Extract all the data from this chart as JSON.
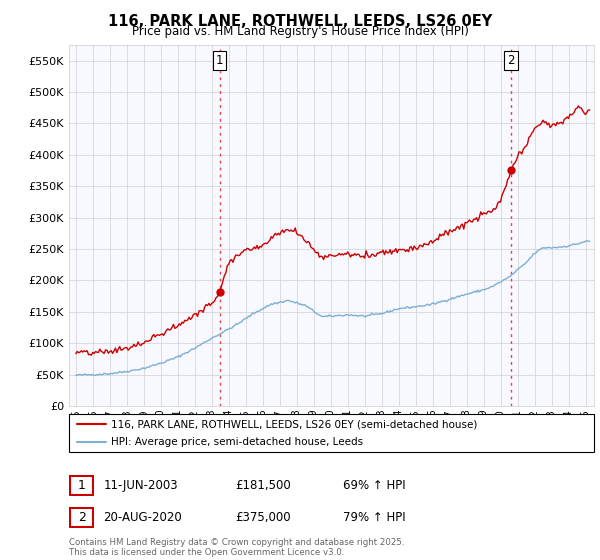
{
  "title": "116, PARK LANE, ROTHWELL, LEEDS, LS26 0EY",
  "subtitle": "Price paid vs. HM Land Registry's House Price Index (HPI)",
  "legend_line1": "116, PARK LANE, ROTHWELL, LEEDS, LS26 0EY (semi-detached house)",
  "legend_line2": "HPI: Average price, semi-detached house, Leeds",
  "sale1_date": "11-JUN-2003",
  "sale1_price": "£181,500",
  "sale1_hpi": "69% ↑ HPI",
  "sale2_date": "20-AUG-2020",
  "sale2_price": "£375,000",
  "sale2_hpi": "79% ↑ HPI",
  "footer": "Contains HM Land Registry data © Crown copyright and database right 2025.\nThis data is licensed under the Open Government Licence v3.0.",
  "red_color": "#cc0000",
  "blue_color": "#7bafd4",
  "sale1_year": 2003.458,
  "sale1_val": 181500,
  "sale2_year": 2020.625,
  "sale2_val": 375000,
  "ylim": [
    0,
    575000
  ],
  "yticks": [
    0,
    50000,
    100000,
    150000,
    200000,
    250000,
    300000,
    350000,
    400000,
    450000,
    500000,
    550000
  ],
  "blue_anchors_x": [
    1995.0,
    1996.0,
    1997.0,
    1998.0,
    1999.0,
    2000.0,
    2001.0,
    2002.0,
    2003.0,
    2003.5,
    2004.5,
    2005.5,
    2006.5,
    2007.5,
    2008.5,
    2009.5,
    2010.0,
    2011.0,
    2012.0,
    2013.0,
    2014.0,
    2015.0,
    2016.0,
    2017.0,
    2018.0,
    2019.0,
    2019.5,
    2020.5,
    2021.5,
    2022.0,
    2022.5,
    2023.0,
    2023.5,
    2024.0,
    2024.5,
    2025.0
  ],
  "blue_anchors_y": [
    49000,
    50000,
    51500,
    55000,
    60000,
    68000,
    78000,
    92000,
    108000,
    115000,
    130000,
    148000,
    162000,
    168000,
    160000,
    142000,
    143000,
    145000,
    143000,
    147000,
    155000,
    158000,
    162000,
    170000,
    178000,
    185000,
    190000,
    205000,
    228000,
    243000,
    252000,
    252000,
    253000,
    255000,
    258000,
    262000
  ],
  "red_anchors_x": [
    1995.0,
    1996.0,
    1997.0,
    1998.0,
    1999.0,
    2000.0,
    2001.0,
    2002.0,
    2003.0,
    2003.458,
    2004.0,
    2005.0,
    2006.0,
    2007.0,
    2007.8,
    2008.5,
    2009.0,
    2009.5,
    2010.0,
    2011.0,
    2012.0,
    2012.5,
    2013.0,
    2014.0,
    2015.0,
    2016.0,
    2017.0,
    2018.0,
    2019.0,
    2019.5,
    2020.0,
    2020.625,
    2021.0,
    2021.5,
    2022.0,
    2022.5,
    2023.0,
    2023.5,
    2024.0,
    2024.5,
    2025.0
  ],
  "red_anchors_y": [
    85000,
    84000,
    87000,
    92000,
    100000,
    115000,
    128000,
    145000,
    163000,
    181500,
    230000,
    248000,
    256000,
    278000,
    280000,
    265000,
    250000,
    235000,
    240000,
    242000,
    238000,
    242000,
    245000,
    248000,
    252000,
    262000,
    278000,
    290000,
    305000,
    310000,
    325000,
    375000,
    395000,
    415000,
    440000,
    455000,
    445000,
    450000,
    460000,
    475000,
    468000
  ]
}
